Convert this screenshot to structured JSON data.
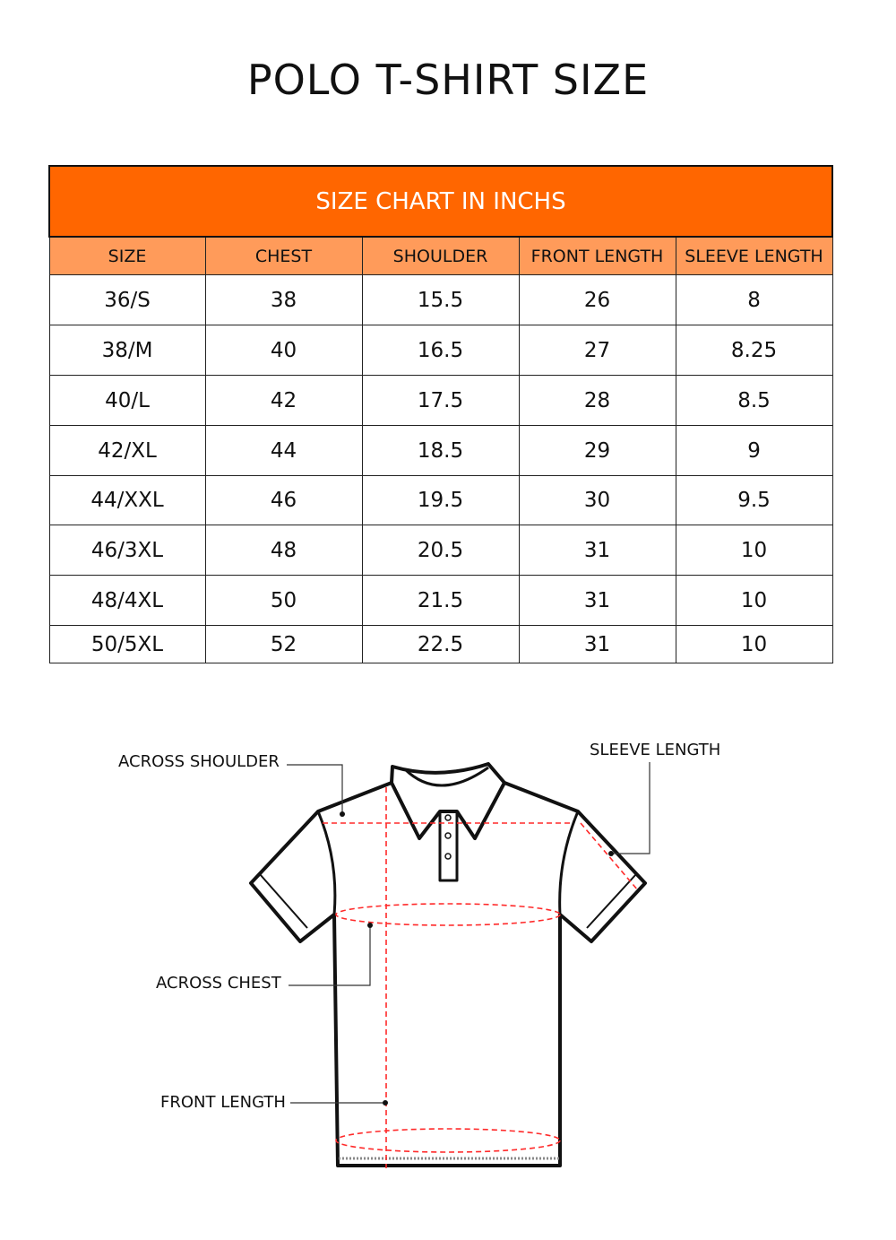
{
  "title": "POLO T-SHIRT SIZE",
  "table": {
    "caption": "SIZE CHART IN INCHS",
    "headers": [
      "SIZE",
      "CHEST",
      "SHOULDER",
      "FRONT LENGTH",
      "SLEEVE LENGTH"
    ],
    "rows": [
      [
        "36/S",
        "38",
        "15.5",
        "26",
        "8"
      ],
      [
        "38/M",
        "40",
        "16.5",
        "27",
        "8.25"
      ],
      [
        "40/L",
        "42",
        "17.5",
        "28",
        "8.5"
      ],
      [
        "42/XL",
        "44",
        "18.5",
        "29",
        "9"
      ],
      [
        "44/XXL",
        "46",
        "19.5",
        "30",
        "9.5"
      ],
      [
        "46/3XL",
        "48",
        "20.5",
        "31",
        "10"
      ],
      [
        "48/4XL",
        "50",
        "21.5",
        "31",
        "10"
      ],
      [
        "50/5XL",
        "52",
        "22.5",
        "31",
        "10"
      ]
    ]
  },
  "diagram": {
    "labels": {
      "across_shoulder": "ACROSS SHOULDER",
      "sleeve_length": "SLEEVE LENGTH",
      "across_chest": "ACROSS CHEST",
      "front_length": "FRONT LENGTH"
    }
  },
  "colors": {
    "banner": "#ff6600",
    "header": "#ff9b5a",
    "measure": "#ff2a2a"
  }
}
